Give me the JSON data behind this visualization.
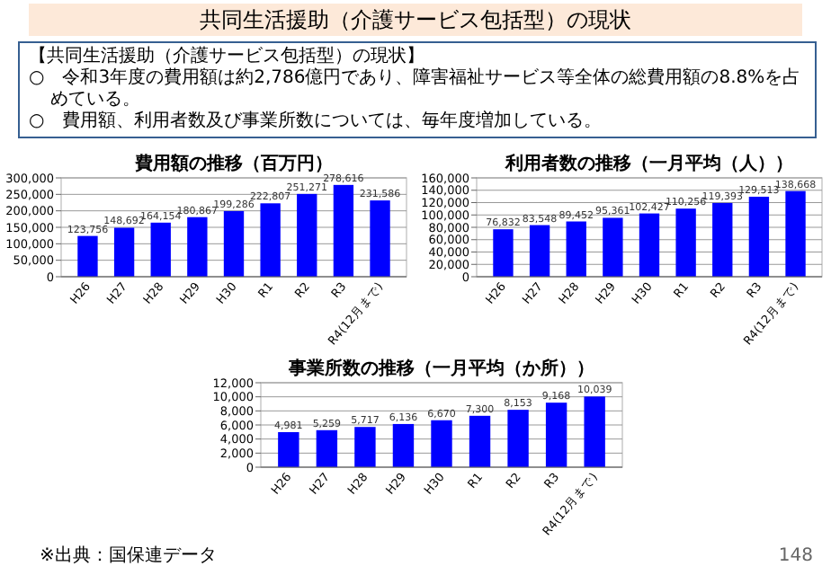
{
  "chart_data": [
    {
      "type": "bar",
      "title": "費用額の推移（百万円）",
      "annotations": [
        "共同生活援助（介護サービス包括型）の現状",
        "【共同生活援助（介護サービス包括型）の現状】",
        "○　令和3年度の費用額は約2,786億円であり、障害福祉サービス等全体の総費用額の8.8%を占めている。",
        "○　費用額、利用者数及び事業所数については、毎年度増加している。"
      ],
      "categories": [
        "H26",
        "H27",
        "H28",
        "H29",
        "H30",
        "R1",
        "R2",
        "R3",
        "R4(12月まで)"
      ],
      "values": [
        123756,
        148692,
        164154,
        180867,
        199286,
        222807,
        251271,
        278616,
        231586
      ],
      "value_labels": [
        "123,756",
        "148,692",
        "164,154",
        "180,867",
        "199,286",
        "222,807",
        "251,271",
        "278,616",
        "231,586"
      ],
      "color": "#0000ff",
      "grid": "y",
      "ylim": [
        0,
        300000
      ],
      "yticks": [
        {
          "value": 0,
          "label": "0"
        },
        {
          "value": 50000,
          "label": "50,000"
        },
        {
          "value": 100000,
          "label": "100,000"
        },
        {
          "value": 150000,
          "label": "150,000"
        },
        {
          "value": 200000,
          "label": "200,000"
        },
        {
          "value": 250000,
          "label": "250,000"
        },
        {
          "value": 300000,
          "label": "300,000"
        }
      ]
    },
    {
      "type": "bar",
      "title": "利用者数の推移（一月平均（人））",
      "categories": [
        "H26",
        "H27",
        "H28",
        "H29",
        "H30",
        "R1",
        "R2",
        "R3",
        "R4(12月まで)"
      ],
      "values": [
        76832,
        83548,
        89452,
        95361,
        102427,
        110256,
        119393,
        129513,
        138668
      ],
      "value_labels": [
        "76,832",
        "83,548",
        "89,452",
        "95,361",
        "102,427",
        "110,256",
        "119,393",
        "129,513",
        "138,668"
      ],
      "color": "#0000ff",
      "grid": "y",
      "ylim": [
        0,
        160000
      ],
      "yticks": [
        {
          "value": 0,
          "label": "0"
        },
        {
          "value": 20000,
          "label": "20,000"
        },
        {
          "value": 40000,
          "label": "40,000"
        },
        {
          "value": 60000,
          "label": "60,000"
        },
        {
          "value": 80000,
          "label": "80,000"
        },
        {
          "value": 100000,
          "label": "100,000"
        },
        {
          "value": 120000,
          "label": "120,000"
        },
        {
          "value": 140000,
          "label": "140,000"
        },
        {
          "value": 160000,
          "label": "160,000"
        }
      ]
    },
    {
      "type": "bar",
      "title": "事業所数の推移（一月平均（か所））",
      "annotations": [
        "※出典：国保連データ",
        "148"
      ],
      "categories": [
        "H26",
        "H27",
        "H28",
        "H29",
        "H30",
        "R1",
        "R2",
        "R3",
        "R4(12月まで)"
      ],
      "values": [
        4981,
        5259,
        5717,
        6136,
        6670,
        7300,
        8153,
        9168,
        10039
      ],
      "value_labels": [
        "4,981",
        "5,259",
        "5,717",
        "6,136",
        "6,670",
        "7,300",
        "8,153",
        "9,168",
        "10,039"
      ],
      "color": "#0000ff",
      "grid": "y",
      "ylim": [
        0,
        12000
      ],
      "yticks": [
        {
          "value": 0,
          "label": "0"
        },
        {
          "value": 2000,
          "label": "2,000"
        },
        {
          "value": 4000,
          "label": "4,000"
        },
        {
          "value": 6000,
          "label": "6,000"
        },
        {
          "value": 8000,
          "label": "8,000"
        },
        {
          "value": 10000,
          "label": "10,000"
        },
        {
          "value": 12000,
          "label": "12,000"
        }
      ]
    }
  ]
}
